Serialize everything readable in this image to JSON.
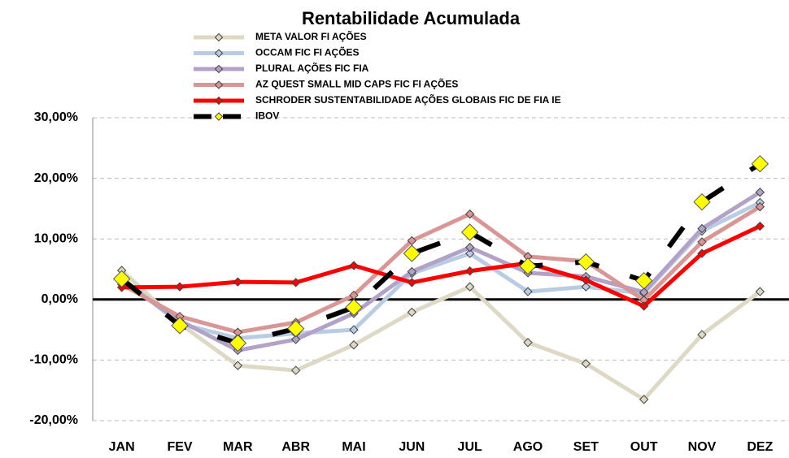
{
  "chart_data": {
    "type": "line",
    "title": "Rentabilidade Acumulada",
    "categories": [
      "JAN",
      "FEV",
      "MAR",
      "ABR",
      "MAI",
      "JUN",
      "JUL",
      "AGO",
      "SET",
      "OUT",
      "NOV",
      "DEZ"
    ],
    "series": [
      {
        "name": "META VALOR FI AÇÕES",
        "color": "#ddd9c4",
        "values": [
          4.8,
          -4.0,
          -10.9,
          -11.7,
          -7.5,
          -2.1,
          2.1,
          -7.1,
          -10.6,
          -16.5,
          -5.8,
          1.3
        ]
      },
      {
        "name": "OCCAM FIC FI AÇÕES",
        "color": "#b8cce4",
        "values": [
          3.5,
          -4.0,
          -6.4,
          -5.6,
          -5.0,
          4.3,
          7.6,
          1.3,
          2.1,
          1.0,
          11.3,
          16.0
        ]
      },
      {
        "name": "PLURAL AÇÕES FIC FIA",
        "color": "#b3a2c7",
        "values": [
          3.0,
          -3.5,
          -8.4,
          -6.6,
          -2.3,
          4.6,
          8.6,
          4.4,
          3.8,
          1.2,
          11.7,
          17.7
        ]
      },
      {
        "name": "AZ QUEST SMALL MID CAPS FIC FI AÇÕES",
        "color": "#d99694",
        "values": [
          2.5,
          -2.8,
          -5.4,
          -3.8,
          0.7,
          9.7,
          14.1,
          7.1,
          6.3,
          -0.1,
          9.5,
          15.3
        ]
      },
      {
        "name": "SCHRODER SUSTENTABILIDADE AÇÕES GLOBAIS FIC DE FIA IE",
        "color": "#ff0000",
        "values": [
          2.0,
          2.1,
          2.9,
          2.8,
          5.6,
          2.8,
          4.7,
          6.0,
          3.2,
          -1.1,
          7.6,
          12.1
        ]
      },
      {
        "name": "IBOV",
        "color": "#000000",
        "values": [
          3.4,
          -4.3,
          -7.2,
          -4.8,
          -1.3,
          7.6,
          11.1,
          5.5,
          6.2,
          3.1,
          16.1,
          22.4
        ]
      }
    ],
    "ylim": [
      -20,
      30
    ],
    "yticks": [
      {
        "value": -20,
        "label": "-20,00%"
      },
      {
        "value": -10,
        "label": "-10,00%"
      },
      {
        "value": 0,
        "label": "0,00%"
      },
      {
        "value": 10,
        "label": "10,00%"
      },
      {
        "value": 20,
        "label": "20,00%"
      },
      {
        "value": 30,
        "label": "30,00%"
      }
    ],
    "grid": true
  }
}
